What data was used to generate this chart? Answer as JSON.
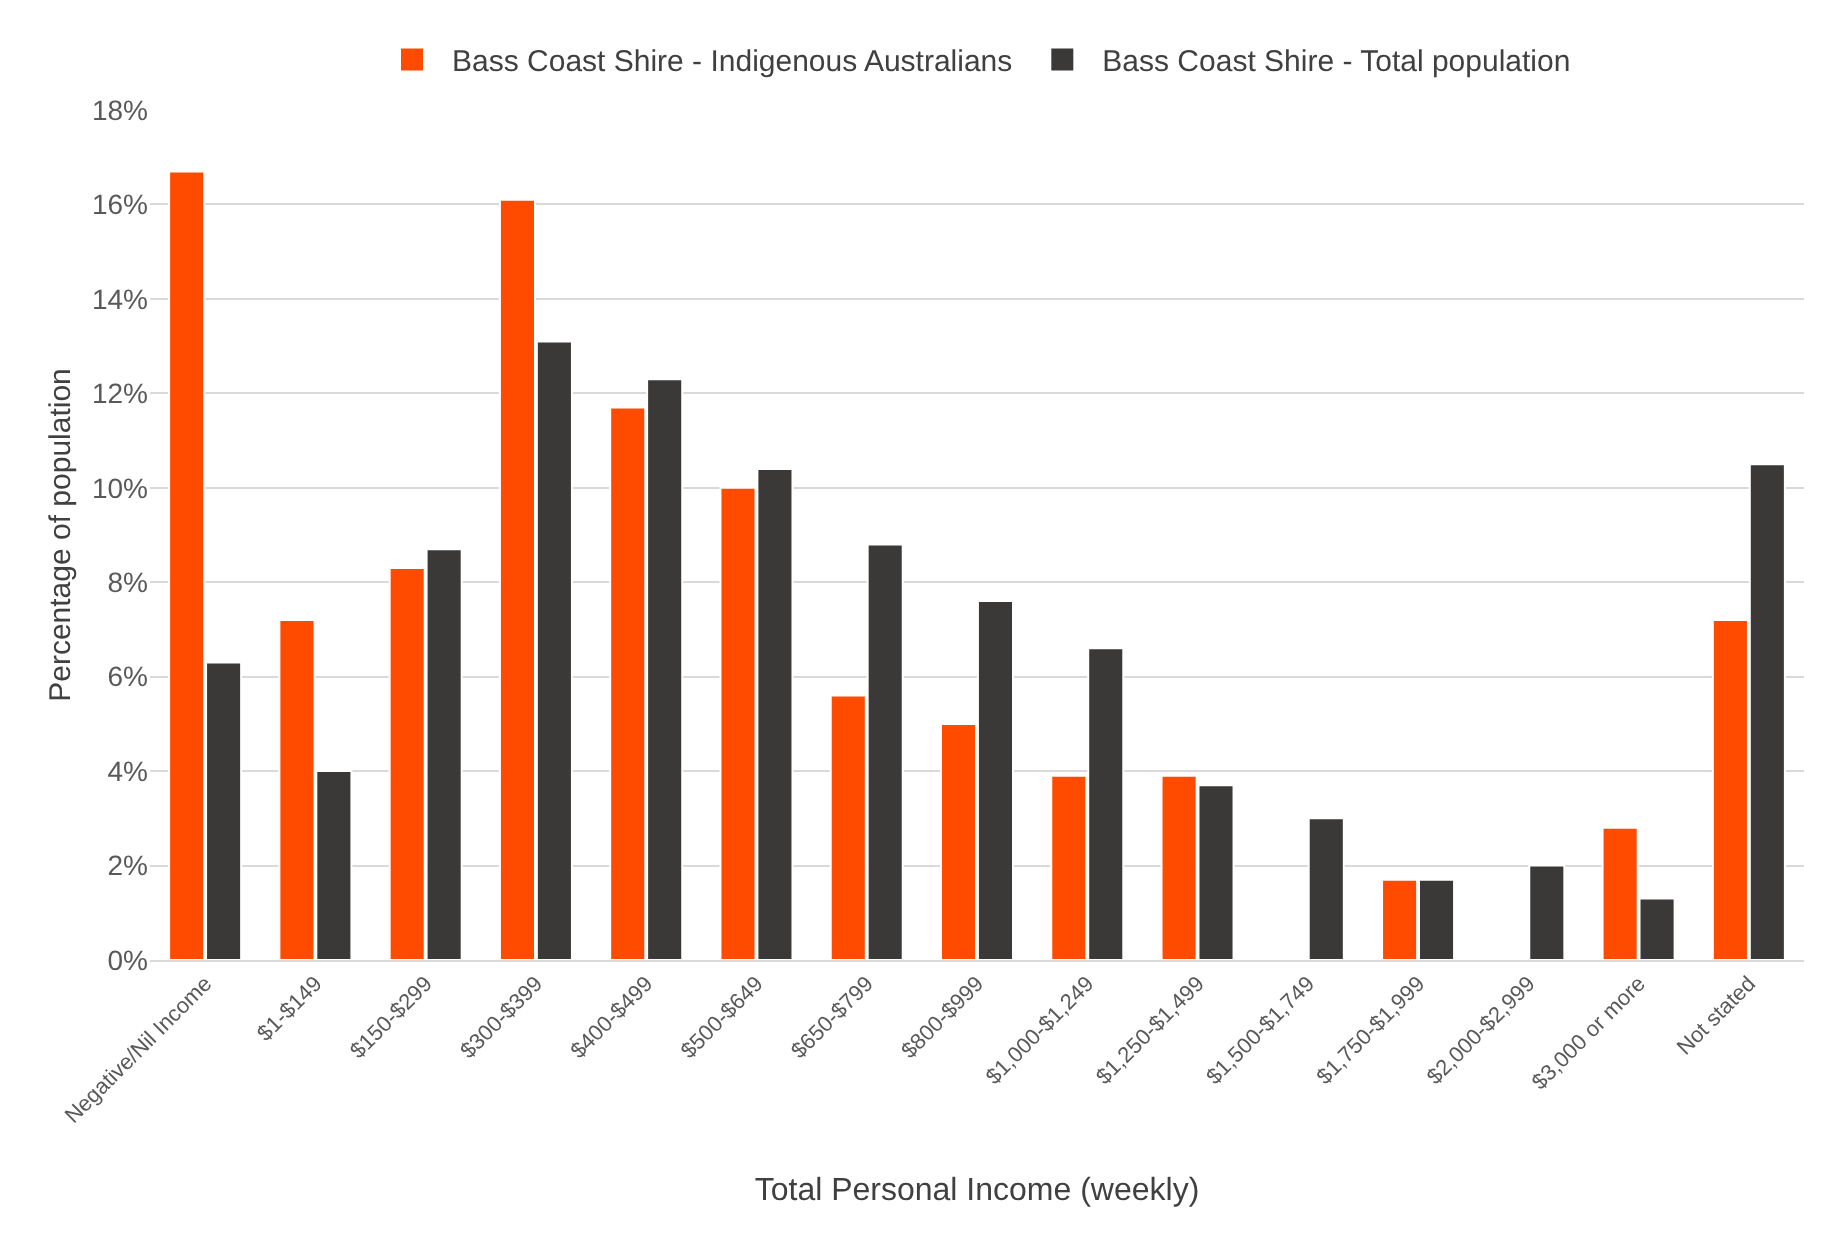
{
  "chart_data": {
    "type": "bar",
    "xlabel": "Total Personal Income (weekly)",
    "ylabel": "Percentage of population",
    "categories": [
      "Negative/Nil Income",
      "$1-$149",
      "$150-$299",
      "$300-$399",
      "$400-$499",
      "$500-$649",
      "$650-$799",
      "$800-$999",
      "$1,000-$1,249",
      "$1,250-$1,499",
      "$1,500-$1,749",
      "$1,750-$1,999",
      "$2,000-$2,999",
      "$3,000 or more",
      "Not stated"
    ],
    "series": [
      {
        "name": "Bass Coast Shire - Indigenous Australians",
        "color": "#ff4b00",
        "values": [
          16.7,
          7.2,
          8.3,
          16.1,
          11.7,
          10.0,
          5.6,
          5.0,
          3.9,
          3.9,
          null,
          1.7,
          null,
          2.8,
          7.2
        ]
      },
      {
        "name": "Bass Coast Shire - Total population",
        "color": "#3a3938",
        "values": [
          6.3,
          4.0,
          8.7,
          13.1,
          12.3,
          10.4,
          8.8,
          7.6,
          6.6,
          3.7,
          3.0,
          1.7,
          2.0,
          1.3,
          10.5
        ]
      }
    ],
    "ylim": [
      0,
      18
    ],
    "yticks": [
      {
        "value": 0,
        "label": "0%"
      },
      {
        "value": 2,
        "label": "2%"
      },
      {
        "value": 4,
        "label": "4%"
      },
      {
        "value": 6,
        "label": "6%"
      },
      {
        "value": 8,
        "label": "8%"
      },
      {
        "value": 10,
        "label": "10%"
      },
      {
        "value": 12,
        "label": "12%"
      },
      {
        "value": 14,
        "label": "14%"
      },
      {
        "value": 16,
        "label": "16%"
      },
      {
        "value": 18,
        "label": "18%"
      }
    ],
    "grid": "y",
    "legend": "top"
  }
}
